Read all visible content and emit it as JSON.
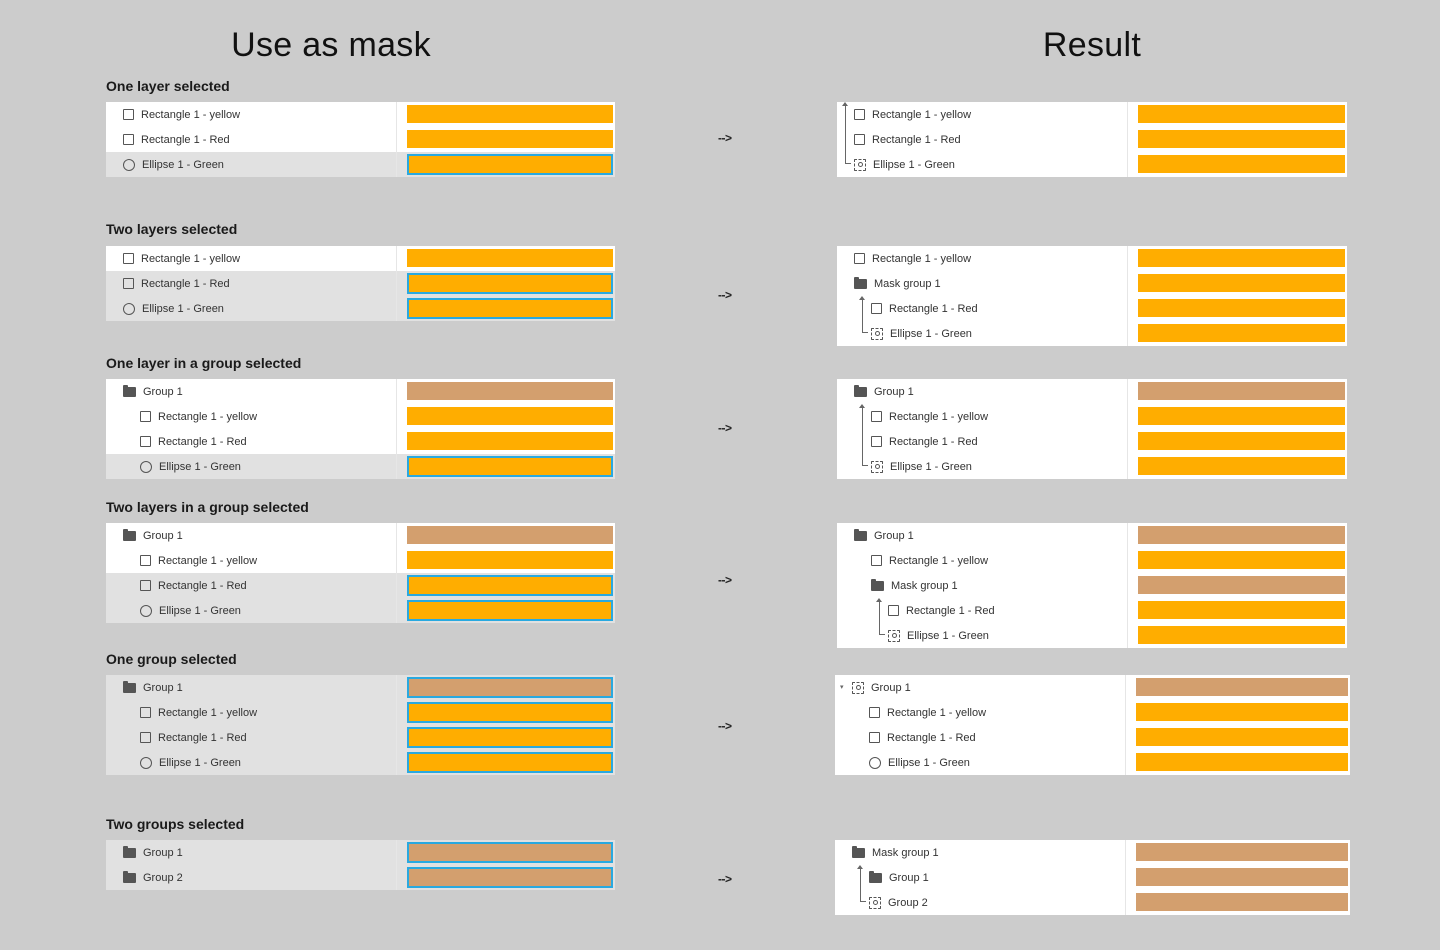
{
  "headings": {
    "left": "Use as mask",
    "right": "Result"
  },
  "arrow": "-->",
  "sections": [
    {
      "title": "One layer selected",
      "before": [
        {
          "label": "Rectangle 1 - yellow",
          "icon": "rect",
          "indent": 0,
          "selected": false,
          "color": "yellow"
        },
        {
          "label": "Rectangle 1 - Red",
          "icon": "rect",
          "indent": 0,
          "selected": false,
          "color": "yellow"
        },
        {
          "label": "Ellipse 1 - Green",
          "icon": "ellipse",
          "indent": 0,
          "selected": true,
          "color": "yellow"
        }
      ],
      "after": [
        {
          "label": "Rectangle 1 - yellow",
          "icon": "rect",
          "indent": 0,
          "color": "yellow"
        },
        {
          "label": "Rectangle 1 - Red",
          "icon": "rect",
          "indent": 0,
          "color": "yellow"
        },
        {
          "label": "Ellipse 1 - Green",
          "icon": "mask",
          "indent": 0,
          "color": "yellow"
        }
      ]
    },
    {
      "title": "Two layers selected",
      "before": [
        {
          "label": "Rectangle 1 - yellow",
          "icon": "rect",
          "indent": 0,
          "selected": false,
          "color": "yellow"
        },
        {
          "label": "Rectangle 1 - Red",
          "icon": "rect",
          "indent": 0,
          "selected": true,
          "color": "yellow"
        },
        {
          "label": "Ellipse 1 - Green",
          "icon": "ellipse",
          "indent": 0,
          "selected": true,
          "color": "yellow"
        }
      ],
      "after": [
        {
          "label": "Rectangle 1 - yellow",
          "icon": "rect",
          "indent": 0,
          "color": "yellow"
        },
        {
          "label": "Mask group 1",
          "icon": "folder",
          "indent": 0,
          "color": "yellow"
        },
        {
          "label": "Rectangle 1 - Red",
          "icon": "rect",
          "indent": 1,
          "color": "yellow"
        },
        {
          "label": "Ellipse 1 - Green",
          "icon": "mask",
          "indent": 1,
          "color": "yellow"
        }
      ]
    },
    {
      "title": "One layer in a group selected",
      "before": [
        {
          "label": "Group 1",
          "icon": "folder",
          "indent": 0,
          "selected": false,
          "color": "tan"
        },
        {
          "label": "Rectangle 1 - yellow",
          "icon": "rect",
          "indent": 1,
          "selected": false,
          "color": "yellow"
        },
        {
          "label": "Rectangle 1 - Red",
          "icon": "rect",
          "indent": 1,
          "selected": false,
          "color": "yellow"
        },
        {
          "label": "Ellipse 1 - Green",
          "icon": "ellipse",
          "indent": 1,
          "selected": true,
          "color": "yellow"
        }
      ],
      "after": [
        {
          "label": "Group 1",
          "icon": "folder",
          "indent": 0,
          "color": "tan"
        },
        {
          "label": "Rectangle 1 - yellow",
          "icon": "rect",
          "indent": 1,
          "color": "yellow"
        },
        {
          "label": "Rectangle 1 - Red",
          "icon": "rect",
          "indent": 1,
          "color": "yellow"
        },
        {
          "label": "Ellipse 1 - Green",
          "icon": "mask",
          "indent": 1,
          "color": "yellow"
        }
      ]
    },
    {
      "title": "Two layers in a group selected",
      "before": [
        {
          "label": "Group 1",
          "icon": "folder",
          "indent": 0,
          "selected": false,
          "color": "tan"
        },
        {
          "label": "Rectangle 1 - yellow",
          "icon": "rect",
          "indent": 1,
          "selected": false,
          "color": "yellow"
        },
        {
          "label": "Rectangle 1 - Red",
          "icon": "rect",
          "indent": 1,
          "selected": true,
          "color": "yellow"
        },
        {
          "label": "Ellipse 1 - Green",
          "icon": "ellipse",
          "indent": 1,
          "selected": true,
          "color": "yellow"
        }
      ],
      "after": [
        {
          "label": "Group 1",
          "icon": "folder",
          "indent": 0,
          "color": "tan"
        },
        {
          "label": "Rectangle 1 - yellow",
          "icon": "rect",
          "indent": 1,
          "color": "yellow"
        },
        {
          "label": "Mask group 1",
          "icon": "folder",
          "indent": 1,
          "color": "tan"
        },
        {
          "label": "Rectangle 1 - Red",
          "icon": "rect",
          "indent": 2,
          "color": "yellow"
        },
        {
          "label": "Ellipse 1 - Green",
          "icon": "mask",
          "indent": 2,
          "color": "yellow"
        }
      ]
    },
    {
      "title": "One group selected",
      "before": [
        {
          "label": "Group 1",
          "icon": "folder",
          "indent": 0,
          "selected": true,
          "color": "tan"
        },
        {
          "label": "Rectangle 1 - yellow",
          "icon": "rect",
          "indent": 1,
          "selected": true,
          "color": "yellow"
        },
        {
          "label": "Rectangle 1 - Red",
          "icon": "rect",
          "indent": 1,
          "selected": true,
          "color": "yellow"
        },
        {
          "label": "Ellipse 1 - Green",
          "icon": "ellipse",
          "indent": 1,
          "selected": true,
          "color": "yellow"
        }
      ],
      "after": [
        {
          "label": "Group 1",
          "icon": "mask",
          "indent": 0,
          "color": "tan"
        },
        {
          "label": "Rectangle 1 - yellow",
          "icon": "rect",
          "indent": 1,
          "color": "yellow"
        },
        {
          "label": "Rectangle 1 - Red",
          "icon": "rect",
          "indent": 1,
          "color": "yellow"
        },
        {
          "label": "Ellipse 1 - Green",
          "icon": "ellipse",
          "indent": 1,
          "color": "yellow"
        }
      ]
    },
    {
      "title": "Two groups selected",
      "before": [
        {
          "label": "Group 1",
          "icon": "folder",
          "indent": 0,
          "selected": true,
          "color": "tan"
        },
        {
          "label": "Group 2",
          "icon": "folder",
          "indent": 0,
          "selected": true,
          "color": "tan"
        }
      ],
      "after": [
        {
          "label": "Mask group 1",
          "icon": "folder",
          "indent": 0,
          "color": "tan"
        },
        {
          "label": "Group 1",
          "icon": "folder",
          "indent": 1,
          "color": "tan"
        },
        {
          "label": "Group 2",
          "icon": "mask",
          "indent": 1,
          "color": "tan"
        }
      ]
    }
  ]
}
